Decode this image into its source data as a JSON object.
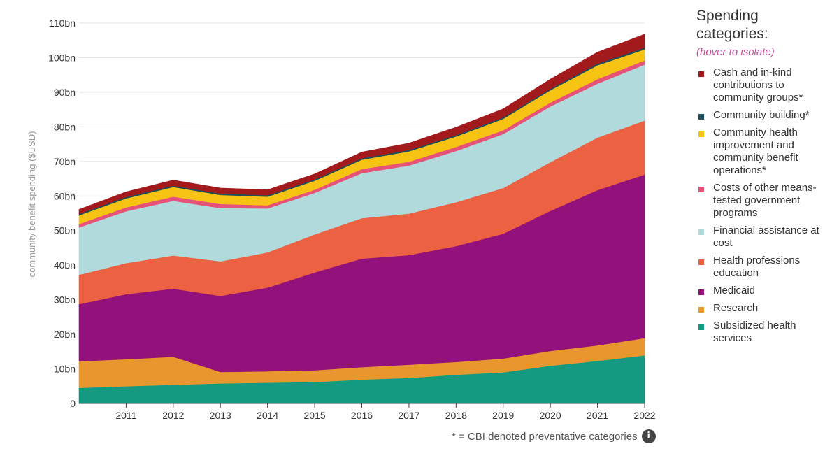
{
  "chart_data": {
    "type": "area",
    "stacked": true,
    "ylabel": "community benefit spending ($USD)",
    "ylim": [
      0,
      110
    ],
    "y_ticks": [
      {
        "value": 0,
        "label": "0"
      },
      {
        "value": 10,
        "label": "10bn"
      },
      {
        "value": 20,
        "label": "20bn"
      },
      {
        "value": 30,
        "label": "30bn"
      },
      {
        "value": 40,
        "label": "40bn"
      },
      {
        "value": 50,
        "label": "50bn"
      },
      {
        "value": 60,
        "label": "60bn"
      },
      {
        "value": 70,
        "label": "70bn"
      },
      {
        "value": 80,
        "label": "80bn"
      },
      {
        "value": 90,
        "label": "90bn"
      },
      {
        "value": 100,
        "label": "100bn"
      },
      {
        "value": 110,
        "label": "110bn"
      }
    ],
    "xlim": [
      2010,
      2022
    ],
    "x": [
      2010,
      2011,
      2012,
      2013,
      2014,
      2015,
      2016,
      2017,
      2018,
      2019,
      2020,
      2021,
      2022
    ],
    "x_tick_labels": [
      "2011",
      "2012",
      "2013",
      "2014",
      "2015",
      "2016",
      "2017",
      "2018",
      "2019",
      "2020",
      "2021",
      "2022"
    ],
    "grid": true,
    "legend_position": "right",
    "series": [
      {
        "name": "Subsidized health services",
        "color": "#149a80",
        "values": [
          4.5,
          5.0,
          5.4,
          5.8,
          6.0,
          6.2,
          6.9,
          7.4,
          8.3,
          9.0,
          10.9,
          12.3,
          13.9
        ]
      },
      {
        "name": "Research",
        "color": "#e8962e",
        "values": [
          7.7,
          7.8,
          8.1,
          3.3,
          3.3,
          3.4,
          3.6,
          3.8,
          3.7,
          4.0,
          4.3,
          4.5,
          5.0
        ]
      },
      {
        "name": "Medicaid",
        "color": "#93117a",
        "values": [
          16.5,
          18.8,
          19.7,
          22.0,
          24.2,
          28.3,
          31.4,
          31.7,
          33.5,
          36.1,
          40.5,
          44.9,
          47.3
        ]
      },
      {
        "name": "Health professions education",
        "color": "#ec6142",
        "values": [
          8.5,
          9.0,
          9.6,
          10.0,
          10.2,
          11.0,
          11.7,
          12.0,
          12.7,
          13.2,
          14.1,
          15.2,
          15.6
        ]
      },
      {
        "name": "Financial assistance at cost",
        "color": "#b1dadd",
        "values": [
          13.7,
          15.0,
          15.8,
          15.4,
          12.7,
          12.0,
          13.0,
          13.9,
          14.8,
          15.6,
          16.1,
          15.6,
          16.2
        ]
      },
      {
        "name": "Costs of other means-tested government programs",
        "color": "#e65278",
        "values": [
          1.0,
          1.1,
          1.2,
          1.2,
          0.9,
          0.9,
          1.2,
          1.1,
          1.2,
          1.1,
          1.1,
          1.3,
          1.2
        ]
      },
      {
        "name": "Community health improvement and community benefit operations*",
        "color": "#f7c313",
        "values": [
          2.5,
          2.6,
          2.8,
          2.6,
          2.5,
          2.6,
          2.7,
          3.0,
          3.0,
          3.3,
          3.6,
          4.0,
          3.2
        ]
      },
      {
        "name": "Community building*",
        "color": "#1e4d5c",
        "values": [
          0.4,
          0.4,
          0.4,
          0.4,
          0.4,
          0.4,
          0.4,
          0.4,
          0.4,
          0.4,
          0.4,
          0.5,
          0.5
        ]
      },
      {
        "name": "Cash and in-kind contributions to community groups*",
        "color": "#a31a1d",
        "values": [
          1.3,
          1.5,
          1.6,
          1.6,
          1.6,
          1.6,
          1.8,
          2.0,
          2.3,
          2.5,
          2.8,
          3.3,
          3.9
        ]
      }
    ]
  },
  "legend": {
    "title": "Spending categories:",
    "subtitle": "(hover to isolate)",
    "items": [
      {
        "label": "Cash and in-kind contributions to community groups*",
        "color": "#a31a1d"
      },
      {
        "label": "Community building*",
        "color": "#1e4d5c"
      },
      {
        "label": "Community health improvement and community benefit operations*",
        "color": "#f7c313"
      },
      {
        "label": "Costs of other means-tested government programs",
        "color": "#e65278"
      },
      {
        "label": "Financial assistance at cost",
        "color": "#b1dadd"
      },
      {
        "label": "Health professions education",
        "color": "#ec6142"
      },
      {
        "label": "Medicaid",
        "color": "#93117a"
      },
      {
        "label": "Research",
        "color": "#e8962e"
      },
      {
        "label": "Subsidized health services",
        "color": "#149a80"
      }
    ]
  },
  "footnote": {
    "text": "* = CBI denoted preventative categories",
    "icon": "info-icon"
  }
}
